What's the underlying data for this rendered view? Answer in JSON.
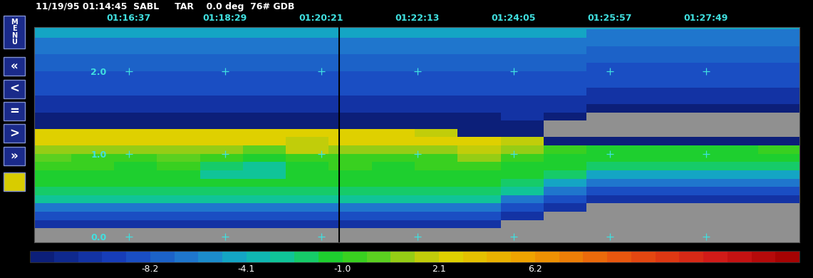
{
  "chart_data": {
    "type": "heatmap",
    "title": "11/19/95 01:14:45  SABL     TAR    0.0 deg  76# GDB",
    "x_edges": [
      880,
      930,
      980,
      1030,
      1080,
      1130,
      1180,
      1230,
      1280,
      1330,
      1380,
      1430,
      1480,
      1530,
      1580,
      1630,
      1680,
      1730,
      1780
    ],
    "y_edges": [
      -0.1,
      0.0,
      0.1,
      0.2,
      0.3,
      0.4,
      0.5,
      0.6,
      0.7,
      0.8,
      0.9,
      1.0,
      1.1,
      1.2,
      1.3,
      1.4,
      1.5,
      1.6,
      1.7,
      1.8,
      1.9,
      2.0,
      2.1,
      2.2,
      2.3,
      2.4,
      2.5,
      2.6
    ],
    "values": [
      [
        null,
        null,
        null,
        null,
        null,
        null,
        null,
        null,
        null,
        null,
        null,
        null,
        null,
        null,
        null,
        null,
        null,
        null
      ],
      [
        null,
        null,
        null,
        null,
        null,
        null,
        null,
        null,
        null,
        null,
        null,
        null,
        null,
        null,
        null,
        null,
        null,
        null
      ],
      [
        -10.3,
        -10.3,
        -10.3,
        -10.3,
        -10.3,
        -10.3,
        -10.3,
        -10.3,
        -10.3,
        -10.3,
        -10.3,
        null,
        null,
        null,
        null,
        null,
        null,
        null
      ],
      [
        -8.6,
        -8.6,
        -8.6,
        -8.6,
        -8.6,
        -8.6,
        -8.6,
        -8.6,
        -8.6,
        -8.6,
        -8.6,
        -10.3,
        null,
        null,
        null,
        null,
        null,
        null
      ],
      [
        -6.6,
        -6.6,
        -6.6,
        -6.6,
        -6.6,
        -6.6,
        -6.6,
        -6.6,
        -6.6,
        -6.6,
        -6.6,
        -8.6,
        -10.3,
        null,
        null,
        null,
        null,
        null
      ],
      [
        -3.0,
        -3.0,
        -3.0,
        -3.0,
        -3.0,
        -3.0,
        -3.0,
        -3.0,
        -3.0,
        -3.0,
        -3.0,
        -6.6,
        -8.6,
        -10.3,
        -10.3,
        -10.3,
        -10.3,
        -10.3
      ],
      [
        -2.2,
        -2.2,
        -2.2,
        -2.2,
        -2.2,
        -2.2,
        -2.2,
        -2.2,
        -2.2,
        -2.2,
        -2.2,
        -3.0,
        -6.6,
        -8.6,
        -8.6,
        -8.6,
        -8.6,
        -8.6
      ],
      [
        -1.4,
        -1.4,
        -1.4,
        -1.4,
        -1.4,
        -1.4,
        -1.4,
        -1.4,
        -1.4,
        -1.4,
        -1.4,
        -2.2,
        -4.6,
        -6.6,
        -6.6,
        -6.6,
        -6.6,
        -6.6
      ],
      [
        -1.4,
        -1.4,
        -1.4,
        -1.4,
        -3.0,
        -3.0,
        -1.4,
        -1.4,
        -1.4,
        -1.4,
        -1.4,
        -1.4,
        -2.2,
        -4.6,
        -4.6,
        -4.6,
        -4.6,
        -4.6
      ],
      [
        -0.6,
        -0.6,
        -1.4,
        -0.6,
        -2.2,
        -3.0,
        -1.4,
        -0.6,
        -1.4,
        -0.6,
        -0.6,
        -1.4,
        -1.4,
        -2.2,
        -2.2,
        -2.2,
        -2.2,
        -2.2
      ],
      [
        0.1,
        -0.6,
        -0.6,
        0.1,
        -0.6,
        -1.4,
        -0.6,
        -0.6,
        -0.6,
        -0.6,
        0.9,
        -0.6,
        -1.4,
        -1.4,
        -1.4,
        -1.4,
        -1.4,
        -1.4
      ],
      [
        0.9,
        0.9,
        0.9,
        0.9,
        0.9,
        0.1,
        1.7,
        0.9,
        0.9,
        0.9,
        1.7,
        0.9,
        -0.6,
        -1.4,
        -1.4,
        -1.4,
        -1.4,
        -0.6
      ],
      [
        2.6,
        2.6,
        2.6,
        2.6,
        2.6,
        2.6,
        1.7,
        2.6,
        2.6,
        2.6,
        2.6,
        1.7,
        -12,
        -12,
        -12,
        -12,
        -12,
        -12
      ],
      [
        2.6,
        2.6,
        2.6,
        2.6,
        2.6,
        2.6,
        2.6,
        2.6,
        2.6,
        1.7,
        -12,
        -12,
        null,
        null,
        null,
        null,
        null,
        null
      ],
      [
        -12,
        -12,
        -12,
        -12,
        -12,
        -12,
        -12,
        -12,
        -12,
        -12,
        -12,
        -12,
        null,
        null,
        null,
        null,
        null,
        null
      ],
      [
        -12,
        -12,
        -12,
        -12,
        -12,
        -12,
        -12,
        -12,
        -12,
        -12,
        -12,
        -10.3,
        -12,
        null,
        null,
        null,
        null,
        null
      ],
      [
        -10.3,
        -10.3,
        -10.3,
        -10.3,
        -10.3,
        -10.3,
        -10.3,
        -10.3,
        -10.3,
        -10.3,
        -10.3,
        -10.3,
        -10.3,
        -12,
        -12,
        -12,
        -12,
        -12
      ],
      [
        -10.3,
        -10.3,
        -10.3,
        -10.3,
        -10.3,
        -10.3,
        -10.3,
        -10.3,
        -10.3,
        -10.3,
        -10.3,
        -10.3,
        -10.3,
        -10.3,
        -10.3,
        -10.3,
        -10.3,
        -10.3
      ],
      [
        -8.6,
        -8.6,
        -8.6,
        -8.6,
        -8.6,
        -8.6,
        -8.6,
        -8.6,
        -8.6,
        -8.6,
        -8.6,
        -8.6,
        -8.6,
        -10.3,
        -10.3,
        -10.3,
        -10.3,
        -10.3
      ],
      [
        -8.6,
        -8.6,
        -8.6,
        -8.6,
        -8.6,
        -8.6,
        -8.6,
        -8.6,
        -8.6,
        -8.6,
        -8.6,
        -8.6,
        -8.6,
        -8.6,
        -8.6,
        -8.6,
        -8.6,
        -8.6
      ],
      [
        -8.6,
        -8.6,
        -8.6,
        -8.6,
        -8.6,
        -8.6,
        -8.6,
        -8.6,
        -8.6,
        -8.6,
        -8.6,
        -8.6,
        -8.6,
        -8.6,
        -8.6,
        -8.6,
        -8.6,
        -8.6
      ],
      [
        -7.7,
        -7.7,
        -7.7,
        -7.7,
        -7.7,
        -7.7,
        -7.7,
        -7.7,
        -7.7,
        -7.7,
        -7.7,
        -7.7,
        -7.7,
        -8.6,
        -8.6,
        -8.6,
        -8.6,
        -8.6
      ],
      [
        -7.7,
        -7.7,
        -7.7,
        -7.7,
        -7.7,
        -7.7,
        -7.7,
        -7.7,
        -7.7,
        -7.7,
        -7.7,
        -7.7,
        -7.7,
        -7.7,
        -7.7,
        -7.7,
        -7.7,
        -7.7
      ],
      [
        -6.6,
        -6.6,
        -6.6,
        -6.6,
        -6.6,
        -6.6,
        -6.6,
        -6.6,
        -6.6,
        -6.6,
        -6.6,
        -6.6,
        -6.6,
        -7.7,
        -7.7,
        -7.7,
        -7.7,
        -7.7
      ],
      [
        -6.6,
        -6.6,
        -6.6,
        -6.6,
        -6.6,
        -6.6,
        -6.6,
        -6.6,
        -6.6,
        -6.6,
        -6.6,
        -6.6,
        -6.6,
        -6.6,
        -6.6,
        -6.6,
        -6.6,
        -6.6
      ],
      [
        -4.6,
        -4.6,
        -4.6,
        -4.6,
        -4.6,
        -4.6,
        -4.6,
        -4.6,
        -4.6,
        -4.6,
        -4.6,
        -4.6,
        -4.6,
        -6.6,
        -6.6,
        -6.6,
        -6.6,
        -6.6
      ],
      [
        -4.6,
        -4.6,
        -4.6,
        -4.6,
        -4.6,
        -4.6,
        -4.6,
        -4.6,
        -4.6,
        -4.6,
        -4.6,
        -4.6,
        -4.6,
        -4.6,
        -4.6,
        -4.6,
        -4.6,
        -4.6
      ]
    ],
    "xlim": [
      887,
      1778
    ],
    "ylim": [
      -0.07,
      2.53
    ],
    "xticks": [
      {
        "value": 997,
        "label": "01:16:37"
      },
      {
        "value": 1109,
        "label": "01:18:29"
      },
      {
        "value": 1221,
        "label": "01:20:21"
      },
      {
        "value": 1333,
        "label": "01:22:13"
      },
      {
        "value": 1445,
        "label": "01:24:05"
      },
      {
        "value": 1557,
        "label": "01:25:57"
      },
      {
        "value": 1669,
        "label": "01:27:49"
      }
    ],
    "yticks": [
      {
        "value": 0,
        "label": "0.0"
      },
      {
        "value": 1,
        "label": "1.0"
      },
      {
        "value": 2,
        "label": "2.0"
      }
    ],
    "grid": true,
    "cursor_x": 1242,
    "colorbar": {
      "levels": [
        -12.3,
        -11.5,
        -10.7,
        -9.9,
        -9.0,
        -8.2,
        -7.2,
        -6.1,
        -5.1,
        -4.1,
        -3.3,
        -2.6,
        -1.8,
        -1.0,
        -0.2,
        0.5,
        1.3,
        2.1,
        3.1,
        4.2,
        5.2,
        6.2,
        7.2,
        8.2,
        9.3,
        10.3,
        11.3,
        12.3,
        13.4,
        14.4,
        15.4,
        16.4,
        17.5
      ],
      "ticks": [
        -8.2,
        -4.1,
        -1.0,
        2.1,
        6.2
      ]
    }
  },
  "menu": {
    "label": "MENU",
    "buttons": [
      "«",
      "<",
      "=",
      ">",
      "»"
    ]
  }
}
